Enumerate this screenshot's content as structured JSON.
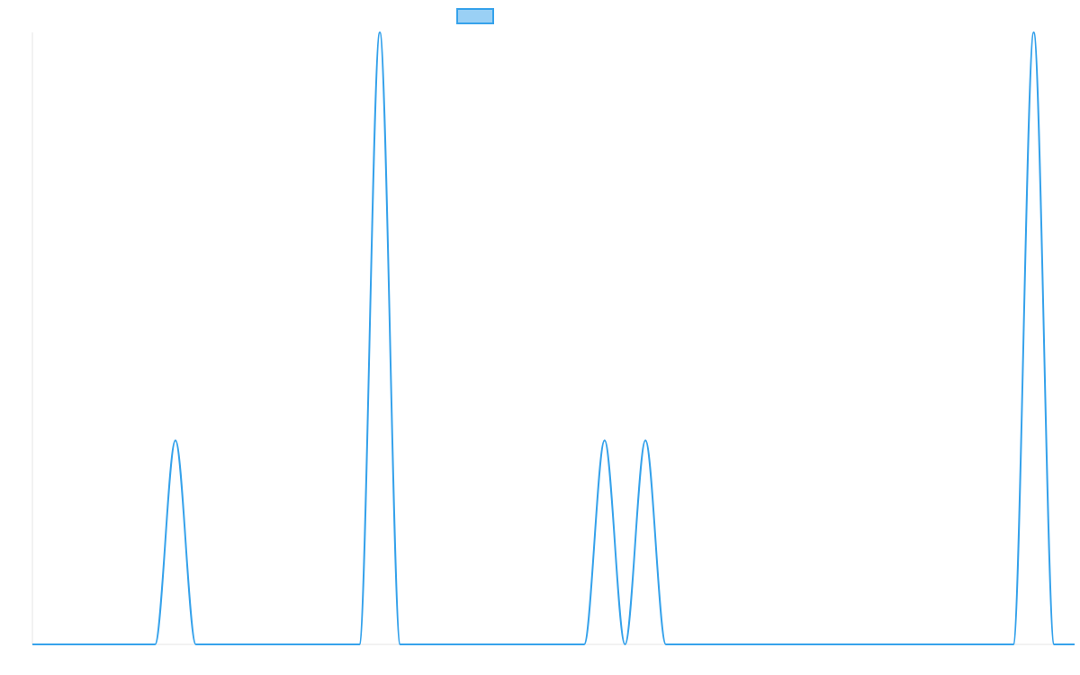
{
  "chart_data": {
    "type": "line",
    "title": "",
    "xlabel": "",
    "ylabel": "",
    "grid": false,
    "legend_placement": "top-center",
    "x": [
      0,
      1,
      2,
      3,
      4,
      5,
      6,
      7,
      8,
      9,
      10,
      11,
      12,
      13,
      14,
      15,
      16,
      17,
      18,
      19,
      20,
      21,
      22,
      23,
      24,
      25,
      26,
      27,
      28,
      29,
      30,
      31,
      32,
      33,
      34,
      35,
      36,
      37,
      38,
      39,
      40,
      41,
      42,
      43,
      44,
      45,
      46,
      47,
      48,
      49,
      50,
      51
    ],
    "xlim": [
      0,
      51
    ],
    "ylim": [
      0,
      3
    ],
    "series": [
      {
        "name": "",
        "color": "#36a2eb",
        "fill_color": "#9ad0f5",
        "values": [
          0,
          0,
          0,
          0,
          0,
          0,
          0,
          1,
          0,
          0,
          0,
          0,
          0,
          0,
          0,
          0,
          0,
          3,
          0,
          0,
          0,
          0,
          0,
          0,
          0,
          0,
          0,
          0,
          1,
          0,
          1,
          0,
          0,
          0,
          0,
          0,
          0,
          0,
          0,
          0,
          0,
          0,
          0,
          0,
          0,
          0,
          0,
          0,
          0,
          3,
          0,
          0
        ]
      }
    ]
  }
}
